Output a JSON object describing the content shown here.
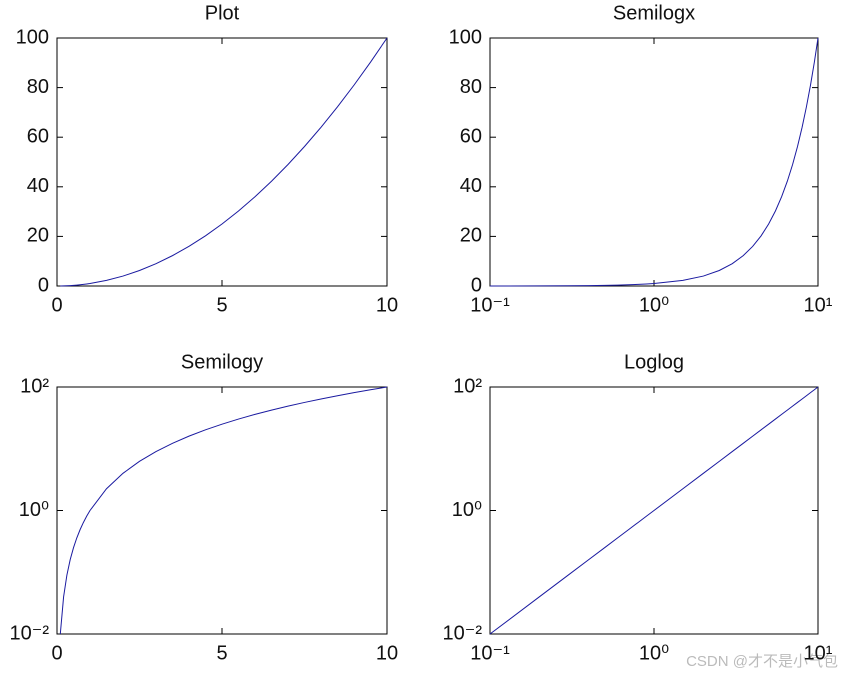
{
  "chart_data": [
    {
      "type": "line",
      "title": "Plot",
      "xscale": "linear",
      "yscale": "linear",
      "color": "#1a1aa0",
      "x": [
        0.1,
        0.2,
        0.3,
        0.4,
        0.5,
        0.6,
        0.7,
        0.8,
        0.9,
        1,
        1.5,
        2,
        2.5,
        3,
        3.5,
        4,
        4.5,
        5,
        5.5,
        6,
        6.5,
        7,
        7.5,
        8,
        8.5,
        9,
        9.5,
        10
      ],
      "values": [
        0.01,
        0.04,
        0.09,
        0.16,
        0.25,
        0.36,
        0.49,
        0.64,
        0.81,
        1,
        2.25,
        4,
        6.25,
        9,
        12.25,
        16,
        20.25,
        25,
        30.25,
        36,
        42.25,
        49,
        56.25,
        64,
        72.25,
        81,
        90.25,
        100
      ],
      "xlim": [
        0,
        10
      ],
      "ylim": [
        0,
        100
      ],
      "xticks": [
        0,
        5,
        10
      ],
      "yticks": [
        0,
        20,
        40,
        60,
        80,
        100
      ]
    },
    {
      "type": "line",
      "title": "Semilogx",
      "xscale": "log",
      "yscale": "linear",
      "color": "#1a1aa0",
      "x": [
        0.1,
        0.2,
        0.3,
        0.4,
        0.5,
        0.6,
        0.7,
        0.8,
        0.9,
        1,
        1.5,
        2,
        2.5,
        3,
        3.5,
        4,
        4.5,
        5,
        5.5,
        6,
        6.5,
        7,
        7.5,
        8,
        8.5,
        9,
        9.5,
        10
      ],
      "values": [
        0.01,
        0.04,
        0.09,
        0.16,
        0.25,
        0.36,
        0.49,
        0.64,
        0.81,
        1,
        2.25,
        4,
        6.25,
        9,
        12.25,
        16,
        20.25,
        25,
        30.25,
        36,
        42.25,
        49,
        56.25,
        64,
        72.25,
        81,
        90.25,
        100
      ],
      "xlim": [
        0.1,
        10
      ],
      "ylim": [
        0,
        100
      ],
      "xticks": [
        {
          "value": 0.1,
          "label": "10⁻¹"
        },
        {
          "value": 1,
          "label": "10⁰"
        },
        {
          "value": 10,
          "label": "10¹"
        }
      ],
      "yticks": [
        0,
        20,
        40,
        60,
        80,
        100
      ]
    },
    {
      "type": "line",
      "title": "Semilogy",
      "xscale": "linear",
      "yscale": "log",
      "color": "#1a1aa0",
      "x": [
        0.1,
        0.2,
        0.3,
        0.4,
        0.5,
        0.6,
        0.7,
        0.8,
        0.9,
        1,
        1.5,
        2,
        2.5,
        3,
        3.5,
        4,
        4.5,
        5,
        5.5,
        6,
        6.5,
        7,
        7.5,
        8,
        8.5,
        9,
        9.5,
        10
      ],
      "values": [
        0.01,
        0.04,
        0.09,
        0.16,
        0.25,
        0.36,
        0.49,
        0.64,
        0.81,
        1,
        2.25,
        4,
        6.25,
        9,
        12.25,
        16,
        20.25,
        25,
        30.25,
        36,
        42.25,
        49,
        56.25,
        64,
        72.25,
        81,
        90.25,
        100
      ],
      "xlim": [
        0,
        10
      ],
      "ylim": [
        0.01,
        100
      ],
      "xticks": [
        0,
        5,
        10
      ],
      "yticks": [
        {
          "value": 0.01,
          "label": "10⁻²"
        },
        {
          "value": 1,
          "label": "10⁰"
        },
        {
          "value": 100,
          "label": "10²"
        }
      ]
    },
    {
      "type": "line",
      "title": "Loglog",
      "xscale": "log",
      "yscale": "log",
      "color": "#1a1aa0",
      "x": [
        0.1,
        0.2,
        0.3,
        0.4,
        0.5,
        0.6,
        0.7,
        0.8,
        0.9,
        1,
        1.5,
        2,
        2.5,
        3,
        3.5,
        4,
        4.5,
        5,
        5.5,
        6,
        6.5,
        7,
        7.5,
        8,
        8.5,
        9,
        9.5,
        10
      ],
      "values": [
        0.01,
        0.04,
        0.09,
        0.16,
        0.25,
        0.36,
        0.49,
        0.64,
        0.81,
        1,
        2.25,
        4,
        6.25,
        9,
        12.25,
        16,
        20.25,
        25,
        30.25,
        36,
        42.25,
        49,
        56.25,
        64,
        72.25,
        81,
        90.25,
        100
      ],
      "xlim": [
        0.1,
        10
      ],
      "ylim": [
        0.01,
        100
      ],
      "xticks": [
        {
          "value": 0.1,
          "label": "10⁻¹"
        },
        {
          "value": 1,
          "label": "10⁰"
        },
        {
          "value": 10,
          "label": "10¹"
        }
      ],
      "yticks": [
        {
          "value": 0.01,
          "label": "10⁻²"
        },
        {
          "value": 1,
          "label": "10⁰"
        },
        {
          "value": 100,
          "label": "10²"
        }
      ]
    }
  ],
  "watermark": "CSDN @才不是小气包"
}
